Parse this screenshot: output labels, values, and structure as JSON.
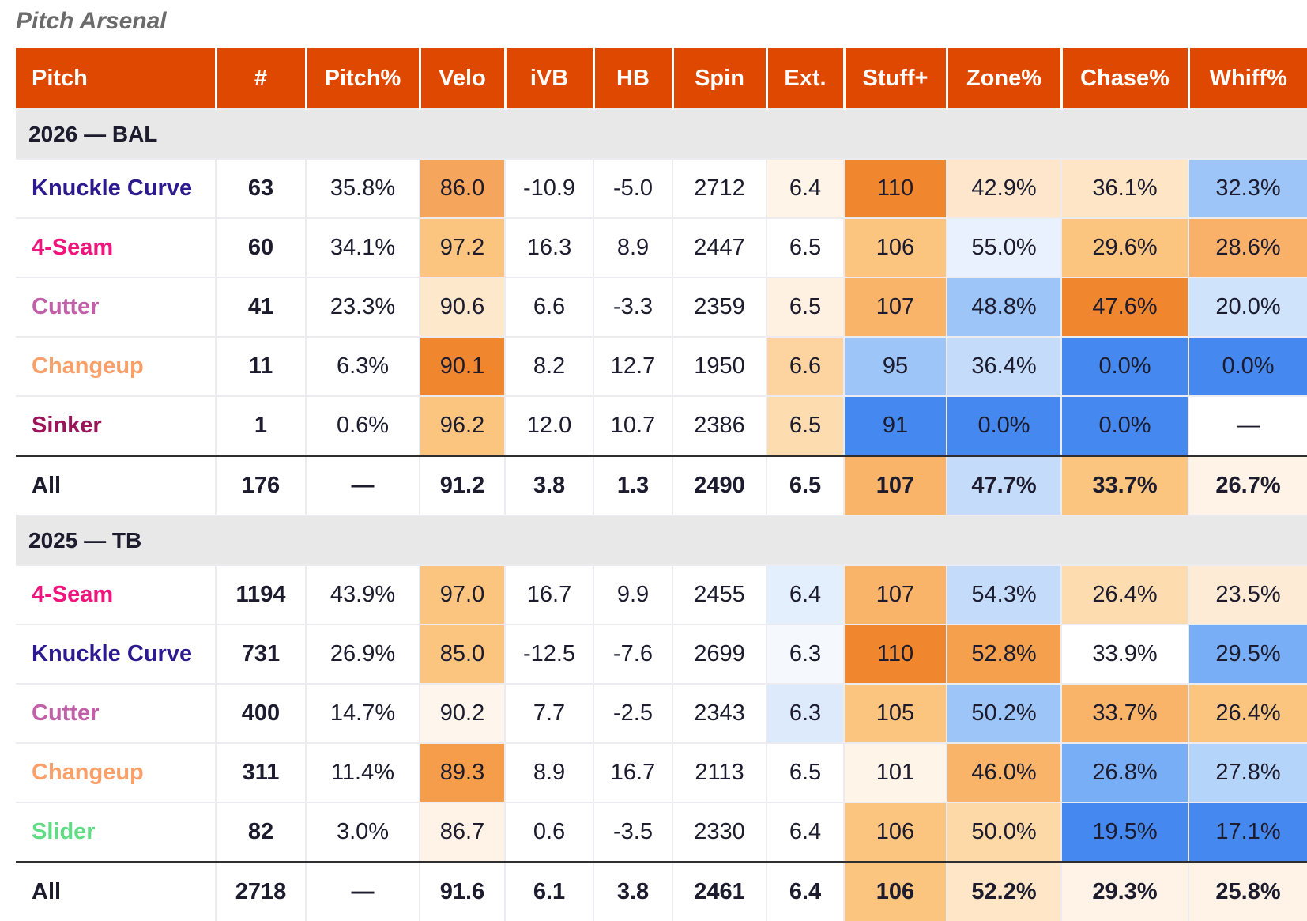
{
  "title": "Pitch Arsenal",
  "columns": [
    "Pitch",
    "#",
    "Pitch%",
    "Velo",
    "iVB",
    "HB",
    "Spin",
    "Ext.",
    "Stuff+",
    "Zone%",
    "Chase%",
    "Whiff%"
  ],
  "pitch_colors": {
    "Knuckle Curve": "#2E1A8F",
    "4-Seam": "#F0157D",
    "Cutter": "#C15FA8",
    "Changeup": "#F9A06A",
    "Sinker": "#9B1458",
    "Slider": "#5FDC84",
    "All": "#1c1c2e"
  },
  "groups": [
    {
      "label": "2026 — BAL",
      "rows": [
        {
          "pitch": "Knuckle Curve",
          "cells": [
            [
              "63",
              ""
            ],
            [
              "35.8%",
              ""
            ],
            [
              "86.0",
              "#F6A55C"
            ],
            [
              "-10.9",
              ""
            ],
            [
              "-5.0",
              ""
            ],
            [
              "2712",
              ""
            ],
            [
              "6.4",
              "#FEF4E8"
            ],
            [
              "110",
              "#F0862E"
            ],
            [
              "42.9%",
              "#FDE6CC"
            ],
            [
              "36.1%",
              "#FEE5C6"
            ],
            [
              "32.3%",
              "#9DC5F7"
            ]
          ]
        },
        {
          "pitch": "4-Seam",
          "cells": [
            [
              "60",
              ""
            ],
            [
              "34.1%",
              ""
            ],
            [
              "97.2",
              "#FBC580"
            ],
            [
              "16.3",
              ""
            ],
            [
              "8.9",
              ""
            ],
            [
              "2447",
              ""
            ],
            [
              "6.5",
              ""
            ],
            [
              "106",
              "#FBC47F"
            ],
            [
              "55.0%",
              "#E8F1FD"
            ],
            [
              "29.6%",
              "#FBC47F"
            ],
            [
              "28.6%",
              "#F9B068"
            ]
          ]
        },
        {
          "pitch": "Cutter",
          "cells": [
            [
              "41",
              ""
            ],
            [
              "23.3%",
              ""
            ],
            [
              "90.6",
              "#FEE8CC"
            ],
            [
              "6.6",
              ""
            ],
            [
              "-3.3",
              ""
            ],
            [
              "2359",
              ""
            ],
            [
              "6.5",
              "#FEF1E2"
            ],
            [
              "107",
              "#F9B46A"
            ],
            [
              "48.8%",
              "#9DC5F7"
            ],
            [
              "47.6%",
              "#F0862E"
            ],
            [
              "20.0%",
              "#CFE3FB"
            ]
          ]
        },
        {
          "pitch": "Changeup",
          "cells": [
            [
              "11",
              ""
            ],
            [
              "6.3%",
              ""
            ],
            [
              "90.1",
              "#F0862E"
            ],
            [
              "8.2",
              ""
            ],
            [
              "12.7",
              ""
            ],
            [
              "1950",
              ""
            ],
            [
              "6.6",
              "#FDD4A0"
            ],
            [
              "95",
              "#9DC5F7"
            ],
            [
              "36.4%",
              "#C4DCFA"
            ],
            [
              "0.0%",
              "#4589F0"
            ],
            [
              "0.0%",
              "#4589F0"
            ]
          ]
        },
        {
          "pitch": "Sinker",
          "cells": [
            [
              "1",
              ""
            ],
            [
              "0.6%",
              ""
            ],
            [
              "96.2",
              "#FBC580"
            ],
            [
              "12.0",
              ""
            ],
            [
              "10.7",
              ""
            ],
            [
              "2386",
              ""
            ],
            [
              "6.5",
              "#FDDCB0"
            ],
            [
              "91",
              "#4589F0"
            ],
            [
              "0.0%",
              "#4589F0"
            ],
            [
              "0.0%",
              "#4589F0"
            ],
            [
              "—",
              ""
            ]
          ]
        }
      ],
      "total": {
        "pitch": "All",
        "cells": [
          [
            "176",
            ""
          ],
          [
            "—",
            ""
          ],
          [
            "91.2",
            ""
          ],
          [
            "3.8",
            ""
          ],
          [
            "1.3",
            ""
          ],
          [
            "2490",
            ""
          ],
          [
            "6.5",
            ""
          ],
          [
            "107",
            "#F9B46A"
          ],
          [
            "47.7%",
            "#C4DCFA"
          ],
          [
            "33.7%",
            "#FBC47F"
          ],
          [
            "26.7%",
            "#FEF3E6"
          ]
        ]
      }
    },
    {
      "label": "2025 — TB",
      "rows": [
        {
          "pitch": "4-Seam",
          "cells": [
            [
              "1194",
              ""
            ],
            [
              "43.9%",
              ""
            ],
            [
              "97.0",
              "#FBC580"
            ],
            [
              "16.7",
              ""
            ],
            [
              "9.9",
              ""
            ],
            [
              "2455",
              ""
            ],
            [
              "6.4",
              "#E4EFFD"
            ],
            [
              "107",
              "#F9B46A"
            ],
            [
              "54.3%",
              "#C4DCFA"
            ],
            [
              "26.4%",
              "#FDDCB0"
            ],
            [
              "23.5%",
              "#FEEBD6"
            ]
          ]
        },
        {
          "pitch": "Knuckle Curve",
          "cells": [
            [
              "731",
              ""
            ],
            [
              "26.9%",
              ""
            ],
            [
              "85.0",
              "#FBC580"
            ],
            [
              "-12.5",
              ""
            ],
            [
              "-7.6",
              ""
            ],
            [
              "2699",
              ""
            ],
            [
              "6.3",
              "#F5F9FE"
            ],
            [
              "110",
              "#F0862E"
            ],
            [
              "52.8%",
              "#F5A04D"
            ],
            [
              "33.9%",
              ""
            ],
            [
              "29.5%",
              "#78AEF6"
            ]
          ]
        },
        {
          "pitch": "Cutter",
          "cells": [
            [
              "400",
              ""
            ],
            [
              "14.7%",
              ""
            ],
            [
              "90.2",
              "#FEF6EC"
            ],
            [
              "7.7",
              ""
            ],
            [
              "-2.5",
              ""
            ],
            [
              "2343",
              ""
            ],
            [
              "6.3",
              "#DCEAFC"
            ],
            [
              "105",
              "#FBC47F"
            ],
            [
              "50.2%",
              "#9DC5F7"
            ],
            [
              "33.7%",
              "#F9B46A"
            ],
            [
              "26.4%",
              "#FBC47F"
            ]
          ]
        },
        {
          "pitch": "Changeup",
          "cells": [
            [
              "311",
              ""
            ],
            [
              "11.4%",
              ""
            ],
            [
              "89.3",
              "#F59D4A"
            ],
            [
              "8.9",
              ""
            ],
            [
              "16.7",
              ""
            ],
            [
              "2113",
              ""
            ],
            [
              "6.5",
              ""
            ],
            [
              "101",
              "#FEF4E8"
            ],
            [
              "46.0%",
              "#F9B46A"
            ],
            [
              "26.8%",
              "#78AEF6"
            ],
            [
              "27.8%",
              "#B5D4FA"
            ]
          ]
        },
        {
          "pitch": "Slider",
          "cells": [
            [
              "82",
              ""
            ],
            [
              "3.0%",
              ""
            ],
            [
              "86.7",
              "#FEF3E6"
            ],
            [
              "0.6",
              ""
            ],
            [
              "-3.5",
              ""
            ],
            [
              "2330",
              ""
            ],
            [
              "6.4",
              ""
            ],
            [
              "106",
              "#FBC47F"
            ],
            [
              "50.0%",
              "#FDD9A8"
            ],
            [
              "19.5%",
              "#4589F0"
            ],
            [
              "17.1%",
              "#4589F0"
            ]
          ]
        }
      ],
      "total": {
        "pitch": "All",
        "cells": [
          [
            "2718",
            ""
          ],
          [
            "—",
            ""
          ],
          [
            "91.6",
            ""
          ],
          [
            "6.1",
            ""
          ],
          [
            "3.8",
            ""
          ],
          [
            "2461",
            ""
          ],
          [
            "6.4",
            ""
          ],
          [
            "106",
            "#FBC47F"
          ],
          [
            "52.2%",
            "#FEE6C6"
          ],
          [
            "29.3%",
            "#FEF3E6"
          ],
          [
            "25.8%",
            "#FEF3E6"
          ]
        ]
      }
    }
  ]
}
